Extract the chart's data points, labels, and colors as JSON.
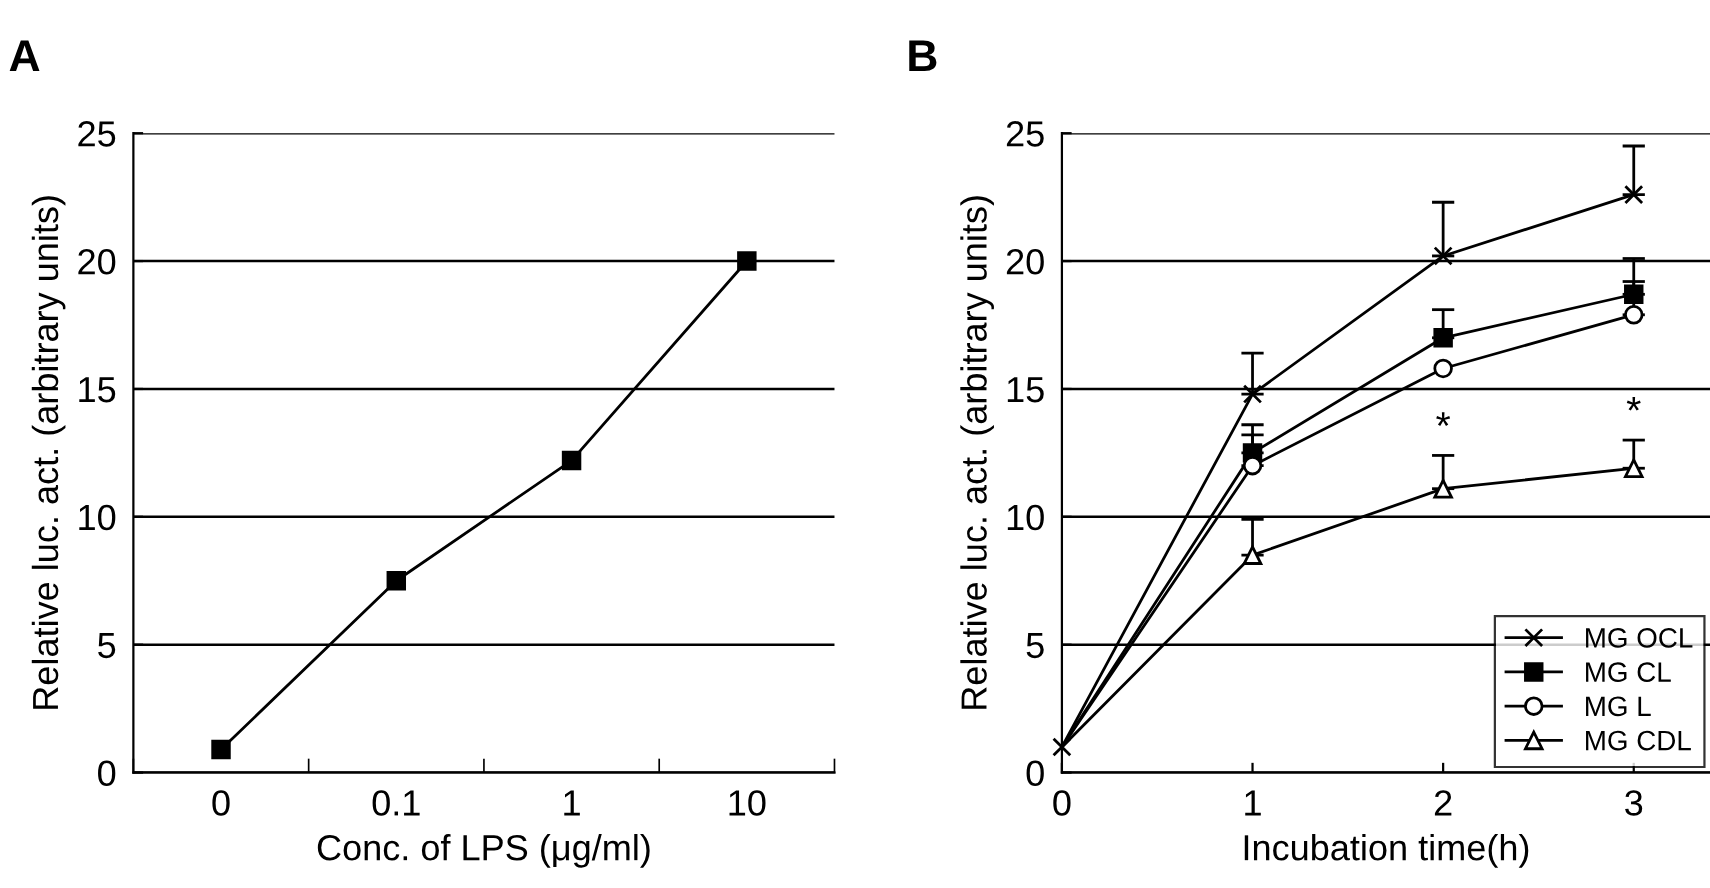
{
  "chart_data": [
    {
      "type": "line",
      "title": "A",
      "xlabel": "Conc. of LPS (μg/ml)",
      "ylabel": "Relative luc. act. (arbitrary units)",
      "categories": [
        "0",
        "0.1",
        "1",
        "10"
      ],
      "series": [
        {
          "color": "#000000",
          "marker": "square",
          "values": [
            0.9,
            7.5,
            12.2,
            20.0
          ]
        }
      ],
      "ylim": [
        0,
        25
      ],
      "yticks": [
        0,
        5,
        10,
        15,
        20,
        25
      ],
      "grid": "y",
      "legend": false
    },
    {
      "type": "line",
      "title": "B",
      "xlabel": "Incubation time(h)",
      "ylabel": "Relative luc. act. (arbitrary units)",
      "x": [
        0,
        1,
        2,
        3
      ],
      "series": [
        {
          "name": "MG OCL",
          "color": "#000000",
          "marker": "cross",
          "values": [
            1.0,
            14.8,
            20.2,
            22.6
          ],
          "errors": [
            null,
            [
              14.8,
              16.4
            ],
            [
              20.2,
              22.3
            ],
            [
              22.6,
              24.5
            ]
          ]
        },
        {
          "name": "MG CL",
          "color": "#000000",
          "marker": "square",
          "values": [
            1.0,
            12.5,
            17.0,
            18.7
          ],
          "errors": [
            null,
            [
              12.5,
              13.6
            ],
            [
              17.0,
              18.1
            ],
            [
              18.7,
              20.1
            ]
          ]
        },
        {
          "name": "MG L",
          "color": "#000000",
          "marker": "circle",
          "values": [
            1.0,
            12.0,
            15.8,
            17.9
          ],
          "errors": [
            null,
            [
              12.0,
              13.2
            ],
            null,
            [
              17.9,
              19.2
            ]
          ]
        },
        {
          "name": "MG CDL",
          "color": "#000000",
          "marker": "triangle",
          "values": [
            1.0,
            8.5,
            11.1,
            11.9
          ],
          "errors": [
            null,
            [
              8.5,
              9.9
            ],
            [
              11.1,
              12.4
            ],
            [
              11.9,
              13.0
            ]
          ]
        }
      ],
      "annotations": [
        {
          "text": "*",
          "x": 2,
          "y": 12.4
        },
        {
          "text": "*",
          "x": 3,
          "y": 13.0
        }
      ],
      "xlim": [
        0,
        3.4
      ],
      "xticks": [
        0,
        1,
        2,
        3
      ],
      "ylim": [
        0,
        25
      ],
      "yticks": [
        0,
        5,
        10,
        15,
        20,
        25
      ],
      "grid": "y",
      "legend": "bottom right"
    }
  ]
}
